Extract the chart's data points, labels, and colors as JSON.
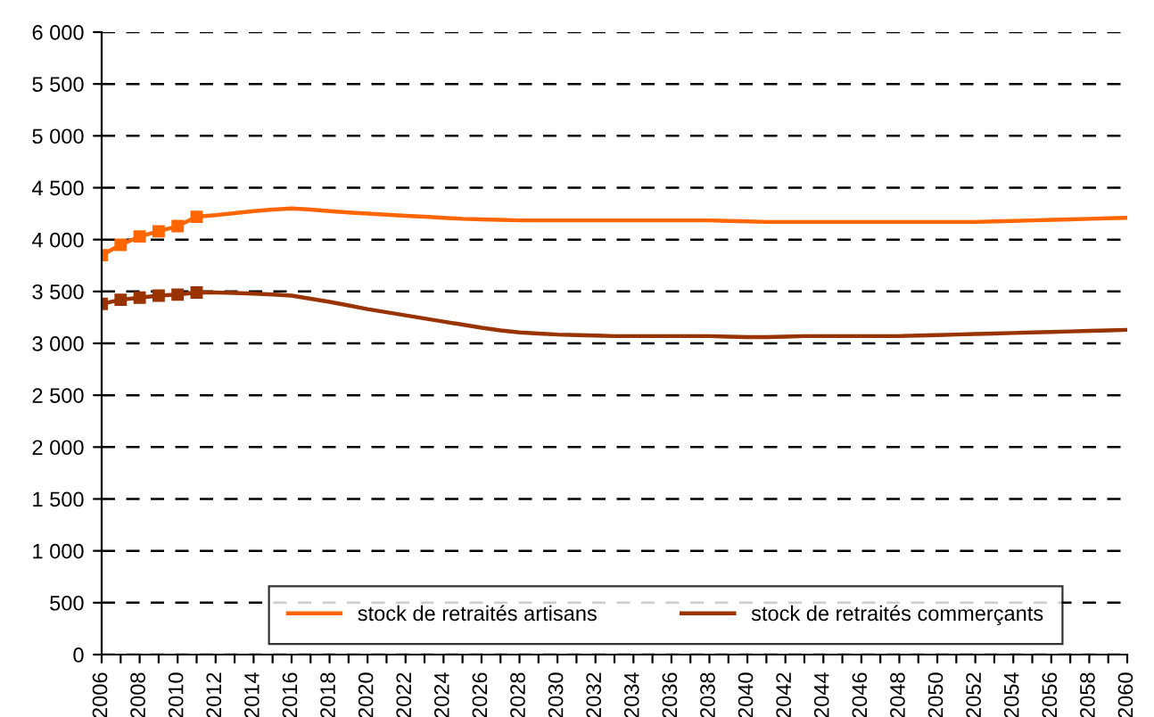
{
  "chart_data": {
    "type": "line",
    "categories": [
      "2006",
      null,
      "2008",
      null,
      "2010",
      null,
      "2012",
      null,
      "2014",
      null,
      "2016",
      null,
      "2018",
      null,
      "2020",
      null,
      "2022",
      null,
      "2024",
      null,
      "2026",
      null,
      "2028",
      null,
      "2030",
      null,
      "2032",
      null,
      "2034",
      null,
      "2036",
      null,
      "2038",
      null,
      "2040",
      null,
      "2042",
      null,
      "2044",
      null,
      "2046",
      null,
      "2048",
      null,
      "2050",
      null,
      "2052",
      null,
      "2054",
      null,
      "2056",
      null,
      "2058",
      null,
      "2060"
    ],
    "series": [
      {
        "name": "stock de retraités artisans",
        "color": "#ff6600",
        "marker": "square",
        "values": [
          3850,
          3950,
          4030,
          4080,
          4130,
          4220,
          null,
          null,
          null,
          null,
          null,
          null,
          null,
          null,
          null,
          null,
          null,
          null,
          null,
          null,
          null,
          null,
          null,
          null,
          null,
          null,
          null,
          null,
          null,
          null,
          null,
          null,
          null,
          null,
          null,
          null,
          null,
          null,
          null,
          null,
          null,
          null,
          null,
          null,
          null,
          null,
          null,
          null,
          null,
          null,
          null,
          null,
          null,
          null,
          null
        ]
      },
      {
        "name": "stock de retraités commerçants",
        "color": "#993300",
        "marker": "square",
        "values": [
          3380,
          3420,
          3440,
          3460,
          3470,
          3490,
          null,
          null,
          null,
          null,
          null,
          null,
          null,
          null,
          null,
          null,
          null,
          null,
          null,
          null,
          null,
          null,
          null,
          null,
          null,
          null,
          null,
          null,
          null,
          null,
          null,
          null,
          null,
          null,
          null,
          null,
          null,
          null,
          null,
          null,
          null,
          null,
          null,
          null,
          null,
          null,
          null,
          null,
          null,
          null,
          null,
          null,
          null,
          null,
          null
        ]
      },
      {
        "color": "#ff6600",
        "marker": "none",
        "values": [
          null,
          null,
          null,
          null,
          null,
          4220,
          4235,
          4255,
          4275,
          4290,
          4300,
          4290,
          4275,
          4262,
          4250,
          4240,
          4230,
          4220,
          4210,
          4200,
          4195,
          4190,
          4185,
          4185,
          4185,
          4185,
          4185,
          4185,
          4185,
          4185,
          4185,
          4185,
          4185,
          4180,
          4175,
          4170,
          4170,
          4170,
          4170,
          4170,
          4170,
          4170,
          4170,
          4170,
          4170,
          4170,
          4170,
          4175,
          4180,
          4185,
          4190,
          4195,
          4200,
          4205,
          4210
        ]
      },
      {
        "color": "#993300",
        "marker": "none",
        "values": [
          null,
          null,
          null,
          null,
          null,
          3490,
          3490,
          3485,
          3480,
          3470,
          3460,
          3430,
          3400,
          3365,
          3330,
          3300,
          3270,
          3240,
          3210,
          3180,
          3150,
          3125,
          3105,
          3095,
          3085,
          3080,
          3075,
          3070,
          3070,
          3070,
          3070,
          3070,
          3070,
          3065,
          3060,
          3060,
          3065,
          3070,
          3070,
          3070,
          3070,
          3070,
          3070,
          3075,
          3080,
          3085,
          3090,
          3095,
          3100,
          3105,
          3110,
          3115,
          3120,
          3125,
          3130
        ]
      }
    ],
    "ylim": [
      0,
      6000
    ],
    "yticks": [
      0,
      500,
      {
        "value": 1000,
        "label": "1 000"
      },
      {
        "value": 1500,
        "label": "1 500"
      },
      {
        "value": 2000,
        "label": "2 000"
      },
      {
        "value": 2500,
        "label": "2 500"
      },
      {
        "value": 3000,
        "label": "3 000"
      },
      {
        "value": 3500,
        "label": "3 500"
      },
      {
        "value": 4000,
        "label": "4 000"
      },
      {
        "value": 4500,
        "label": "4 500"
      },
      {
        "value": 5000,
        "label": "5 000"
      },
      {
        "value": 5500,
        "label": "5 500"
      },
      {
        "value": 6000,
        "label": "6 000"
      }
    ],
    "grid": "y",
    "legend": "bottom",
    "line_style": "solid"
  }
}
